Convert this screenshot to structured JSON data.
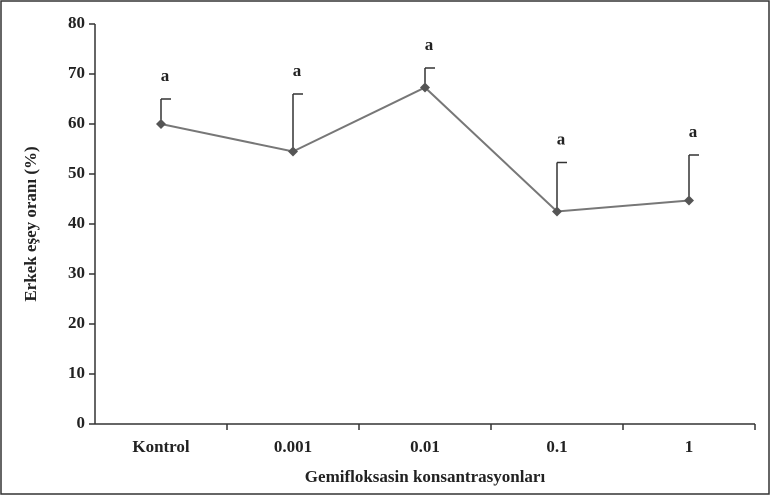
{
  "chart_data": {
    "type": "line",
    "x_label": "Gemifloksasin konsantrasyonları",
    "y_label": "Erkek eşey oranı (%)",
    "categories": [
      "Kontrol",
      "0.001",
      "0.01",
      "0.1",
      "1"
    ],
    "values": [
      60,
      54.5,
      67.3,
      42.5,
      44.7
    ],
    "errors": [
      5,
      11.5,
      3.9,
      9.8,
      9.1
    ],
    "annotations": [
      "a",
      "a",
      "a",
      "a",
      "a"
    ],
    "color": "#777777",
    "marker_color": "#555555",
    "ylim": [
      0,
      80
    ],
    "yticks": [
      0,
      10,
      20,
      30,
      40,
      50,
      60,
      70,
      80
    ]
  }
}
